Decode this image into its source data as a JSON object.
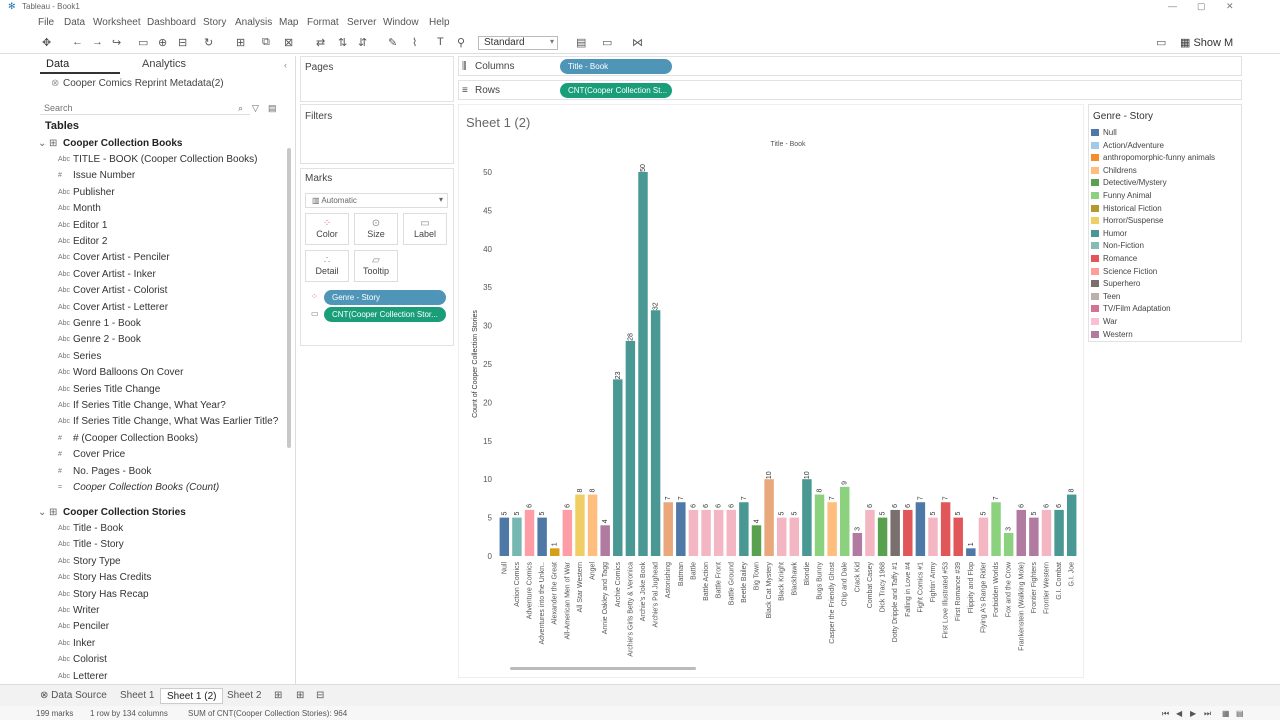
{
  "window": {
    "title": "Tableau - Book1"
  },
  "menu": [
    "File",
    "Data",
    "Worksheet",
    "Dashboard",
    "Story",
    "Analysis",
    "Map",
    "Format",
    "Server",
    "Window",
    "Help"
  ],
  "toolbar": {
    "standard_label": "Standard",
    "show_me_label": "Show M"
  },
  "left": {
    "tab_data": "Data",
    "tab_analytics": "Analytics",
    "datasource": "Cooper Comics Reprint Metadata(2)",
    "search_placeholder": "Search",
    "tables_header": "Tables",
    "group1": "Cooper Collection Books",
    "group1_fields": [
      {
        "icon": "Abc",
        "label": "TITLE - BOOK (Cooper Collection Books)"
      },
      {
        "icon": "#",
        "label": "Issue Number"
      },
      {
        "icon": "Abc",
        "label": "Publisher"
      },
      {
        "icon": "Abc",
        "label": "Month"
      },
      {
        "icon": "Abc",
        "label": "Editor 1"
      },
      {
        "icon": "Abc",
        "label": "Editor 2"
      },
      {
        "icon": "Abc",
        "label": "Cover Artist - Penciler"
      },
      {
        "icon": "Abc",
        "label": "Cover Artist - Inker"
      },
      {
        "icon": "Abc",
        "label": "Cover Artist - Colorist"
      },
      {
        "icon": "Abc",
        "label": "Cover Artist - Letterer"
      },
      {
        "icon": "Abc",
        "label": "Genre 1 - Book"
      },
      {
        "icon": "Abc",
        "label": "Genre 2 - Book"
      },
      {
        "icon": "Abc",
        "label": "Series"
      },
      {
        "icon": "Abc",
        "label": "Word Balloons On Cover"
      },
      {
        "icon": "Abc",
        "label": "Series Title Change"
      },
      {
        "icon": "Abc",
        "label": "If Series Title Change, What Year?"
      },
      {
        "icon": "Abc",
        "label": "If Series Title Change, What Was Earlier Title?"
      },
      {
        "icon": "#",
        "label": "# (Cooper Collection Books)"
      },
      {
        "icon": "#",
        "label": "Cover Price"
      },
      {
        "icon": "#",
        "label": "No. Pages - Book"
      },
      {
        "icon": "=",
        "label": "Cooper Collection Books (Count)"
      }
    ],
    "group2": "Cooper Collection Stories",
    "group2_fields": [
      {
        "icon": "Abc",
        "label": "Title - Book"
      },
      {
        "icon": "Abc",
        "label": "Title - Story"
      },
      {
        "icon": "Abc",
        "label": "Story Type"
      },
      {
        "icon": "Abc",
        "label": "Story Has Credits"
      },
      {
        "icon": "Abc",
        "label": "Story Has Recap"
      },
      {
        "icon": "Abc",
        "label": "Writer"
      },
      {
        "icon": "Abc",
        "label": "Penciler"
      },
      {
        "icon": "Abc",
        "label": "Inker"
      },
      {
        "icon": "Abc",
        "label": "Colorist"
      },
      {
        "icon": "Abc",
        "label": "Letterer"
      }
    ]
  },
  "cards": {
    "pages": "Pages",
    "filters": "Filters",
    "marks": "Marks",
    "mark_type": "Automatic",
    "btn_color": "Color",
    "btn_size": "Size",
    "btn_label": "Label",
    "btn_detail": "Detail",
    "btn_tooltip": "Tooltip",
    "pill_color": "Genre - Story",
    "pill_label": "CNT(Cooper Collection Stor..."
  },
  "shelves": {
    "columns_label": "Columns",
    "rows_label": "Rows",
    "columns_pill": "Title - Book",
    "rows_pill": "CNT(Cooper Collection St..."
  },
  "sheet": {
    "title": "Sheet 1 (2)"
  },
  "chart_data": {
    "type": "bar",
    "title": "Title - Book",
    "ylabel": "Count of Cooper Collection Stories",
    "ylim": [
      0,
      50
    ],
    "yticks": [
      0,
      5,
      10,
      15,
      20,
      25,
      30,
      35,
      40,
      45,
      50
    ],
    "categories": [
      "Null",
      "Action Comics",
      "Adventure Comics",
      "Adventures into the Unkn..",
      "Alexander the Great",
      "All-American Men of War",
      "All Star Western",
      "Angel",
      "Annie Oakley and Tagg",
      "Archie Comics",
      "Archie's Girls Betty & Veronica",
      "Archie's Joke Book",
      "Archie's Pal Jughead",
      "Astonishing",
      "Batman",
      "Battle",
      "Battle Action",
      "Battle Front",
      "Battle Ground",
      "Beetle Bailey",
      "Big Town",
      "Black Cat Mystery",
      "Black Knight",
      "Blackhawk",
      "Blondie",
      "Bugs Bunny",
      "Casper the Friendly Ghost",
      "Chip and Dale",
      "Crack Kid",
      "Combat Casey",
      "Dick Tracy 1968",
      "Dotty Dripple and Taffy #1",
      "Falling in Love #4",
      "Fight Comics #1",
      "Fightin' Army",
      "First Love Illustrated #53",
      "First Romance #39",
      "Flippity and Flop",
      "Flying A's Range Rider",
      "Forbidden Worlds",
      "Fox and the Crow",
      "Frankenstein (Walking Mole)",
      "Frontier Fighters",
      "Frontier Western",
      "G.I. Combat",
      "G.I. Joe"
    ],
    "values": [
      5,
      5,
      6,
      5,
      1,
      6,
      8,
      8,
      4,
      23,
      28,
      50,
      32,
      7,
      7,
      6,
      6,
      6,
      6,
      7,
      4,
      10,
      5,
      5,
      10,
      8,
      7,
      9,
      3,
      6,
      5,
      6,
      6,
      7,
      5,
      7,
      5,
      1,
      5,
      7,
      3,
      6,
      5,
      6,
      6,
      8
    ],
    "colors": [
      "#4e79a7",
      "#76b7b2",
      "#ff9da7",
      "#4e79a7",
      "#d4a017",
      "#ff9da7",
      "#f1ce63",
      "#ffbe7d",
      "#b07aa1",
      "#499894",
      "#499894",
      "#499894",
      "#499894",
      "#e8a87c",
      "#4e79a7",
      "#f4b6c2",
      "#f4b6c2",
      "#f4b6c2",
      "#f4b6c2",
      "#499894",
      "#59a14f",
      "#e8a87c",
      "#f4b6c2",
      "#f4b6c2",
      "#499894",
      "#8cd17d",
      "#ffbe7d",
      "#8cd17d",
      "#b07aa1",
      "#f4b6c2",
      "#59a14f",
      "#79706e",
      "#e15759",
      "#4e79a7",
      "#f4b6c2",
      "#e15759",
      "#e15759",
      "#4e79a7",
      "#f4b6c2",
      "#8cd17d",
      "#8cd17d",
      "#b07aa1",
      "#b07aa1",
      "#f4b6c2",
      "#499894",
      "#499894"
    ]
  },
  "legend": {
    "title": "Genre - Story",
    "items": [
      {
        "label": "Null",
        "color": "#4e79a7"
      },
      {
        "label": "Action/Adventure",
        "color": "#a0cbe8"
      },
      {
        "label": "anthropomorphic-funny animals",
        "color": "#f28e2b"
      },
      {
        "label": "Childrens",
        "color": "#ffbe7d"
      },
      {
        "label": "Detective/Mystery",
        "color": "#59a14f"
      },
      {
        "label": "Funny Animal",
        "color": "#8cd17d"
      },
      {
        "label": "Historical Fiction",
        "color": "#b6992d"
      },
      {
        "label": "Horror/Suspense",
        "color": "#f1ce63"
      },
      {
        "label": "Humor",
        "color": "#499894"
      },
      {
        "label": "Non-Fiction",
        "color": "#86bcb6"
      },
      {
        "label": "Romance",
        "color": "#e15759"
      },
      {
        "label": "Science Fiction",
        "color": "#ff9d9a"
      },
      {
        "label": "Superhero",
        "color": "#79706e"
      },
      {
        "label": "Teen",
        "color": "#bab0ac"
      },
      {
        "label": "TV/Film Adaptation",
        "color": "#d37295"
      },
      {
        "label": "War",
        "color": "#fabfd2"
      },
      {
        "label": "Western",
        "color": "#b07aa1"
      }
    ]
  },
  "tabs": {
    "datasource": "Data Source",
    "sheet1": "Sheet 1",
    "sheet12": "Sheet 1 (2)",
    "sheet2": "Sheet 2"
  },
  "status": {
    "marks": "199 marks",
    "rows": "1 row by 134 columns",
    "sum": "SUM of CNT(Cooper Collection Stories): 964"
  }
}
